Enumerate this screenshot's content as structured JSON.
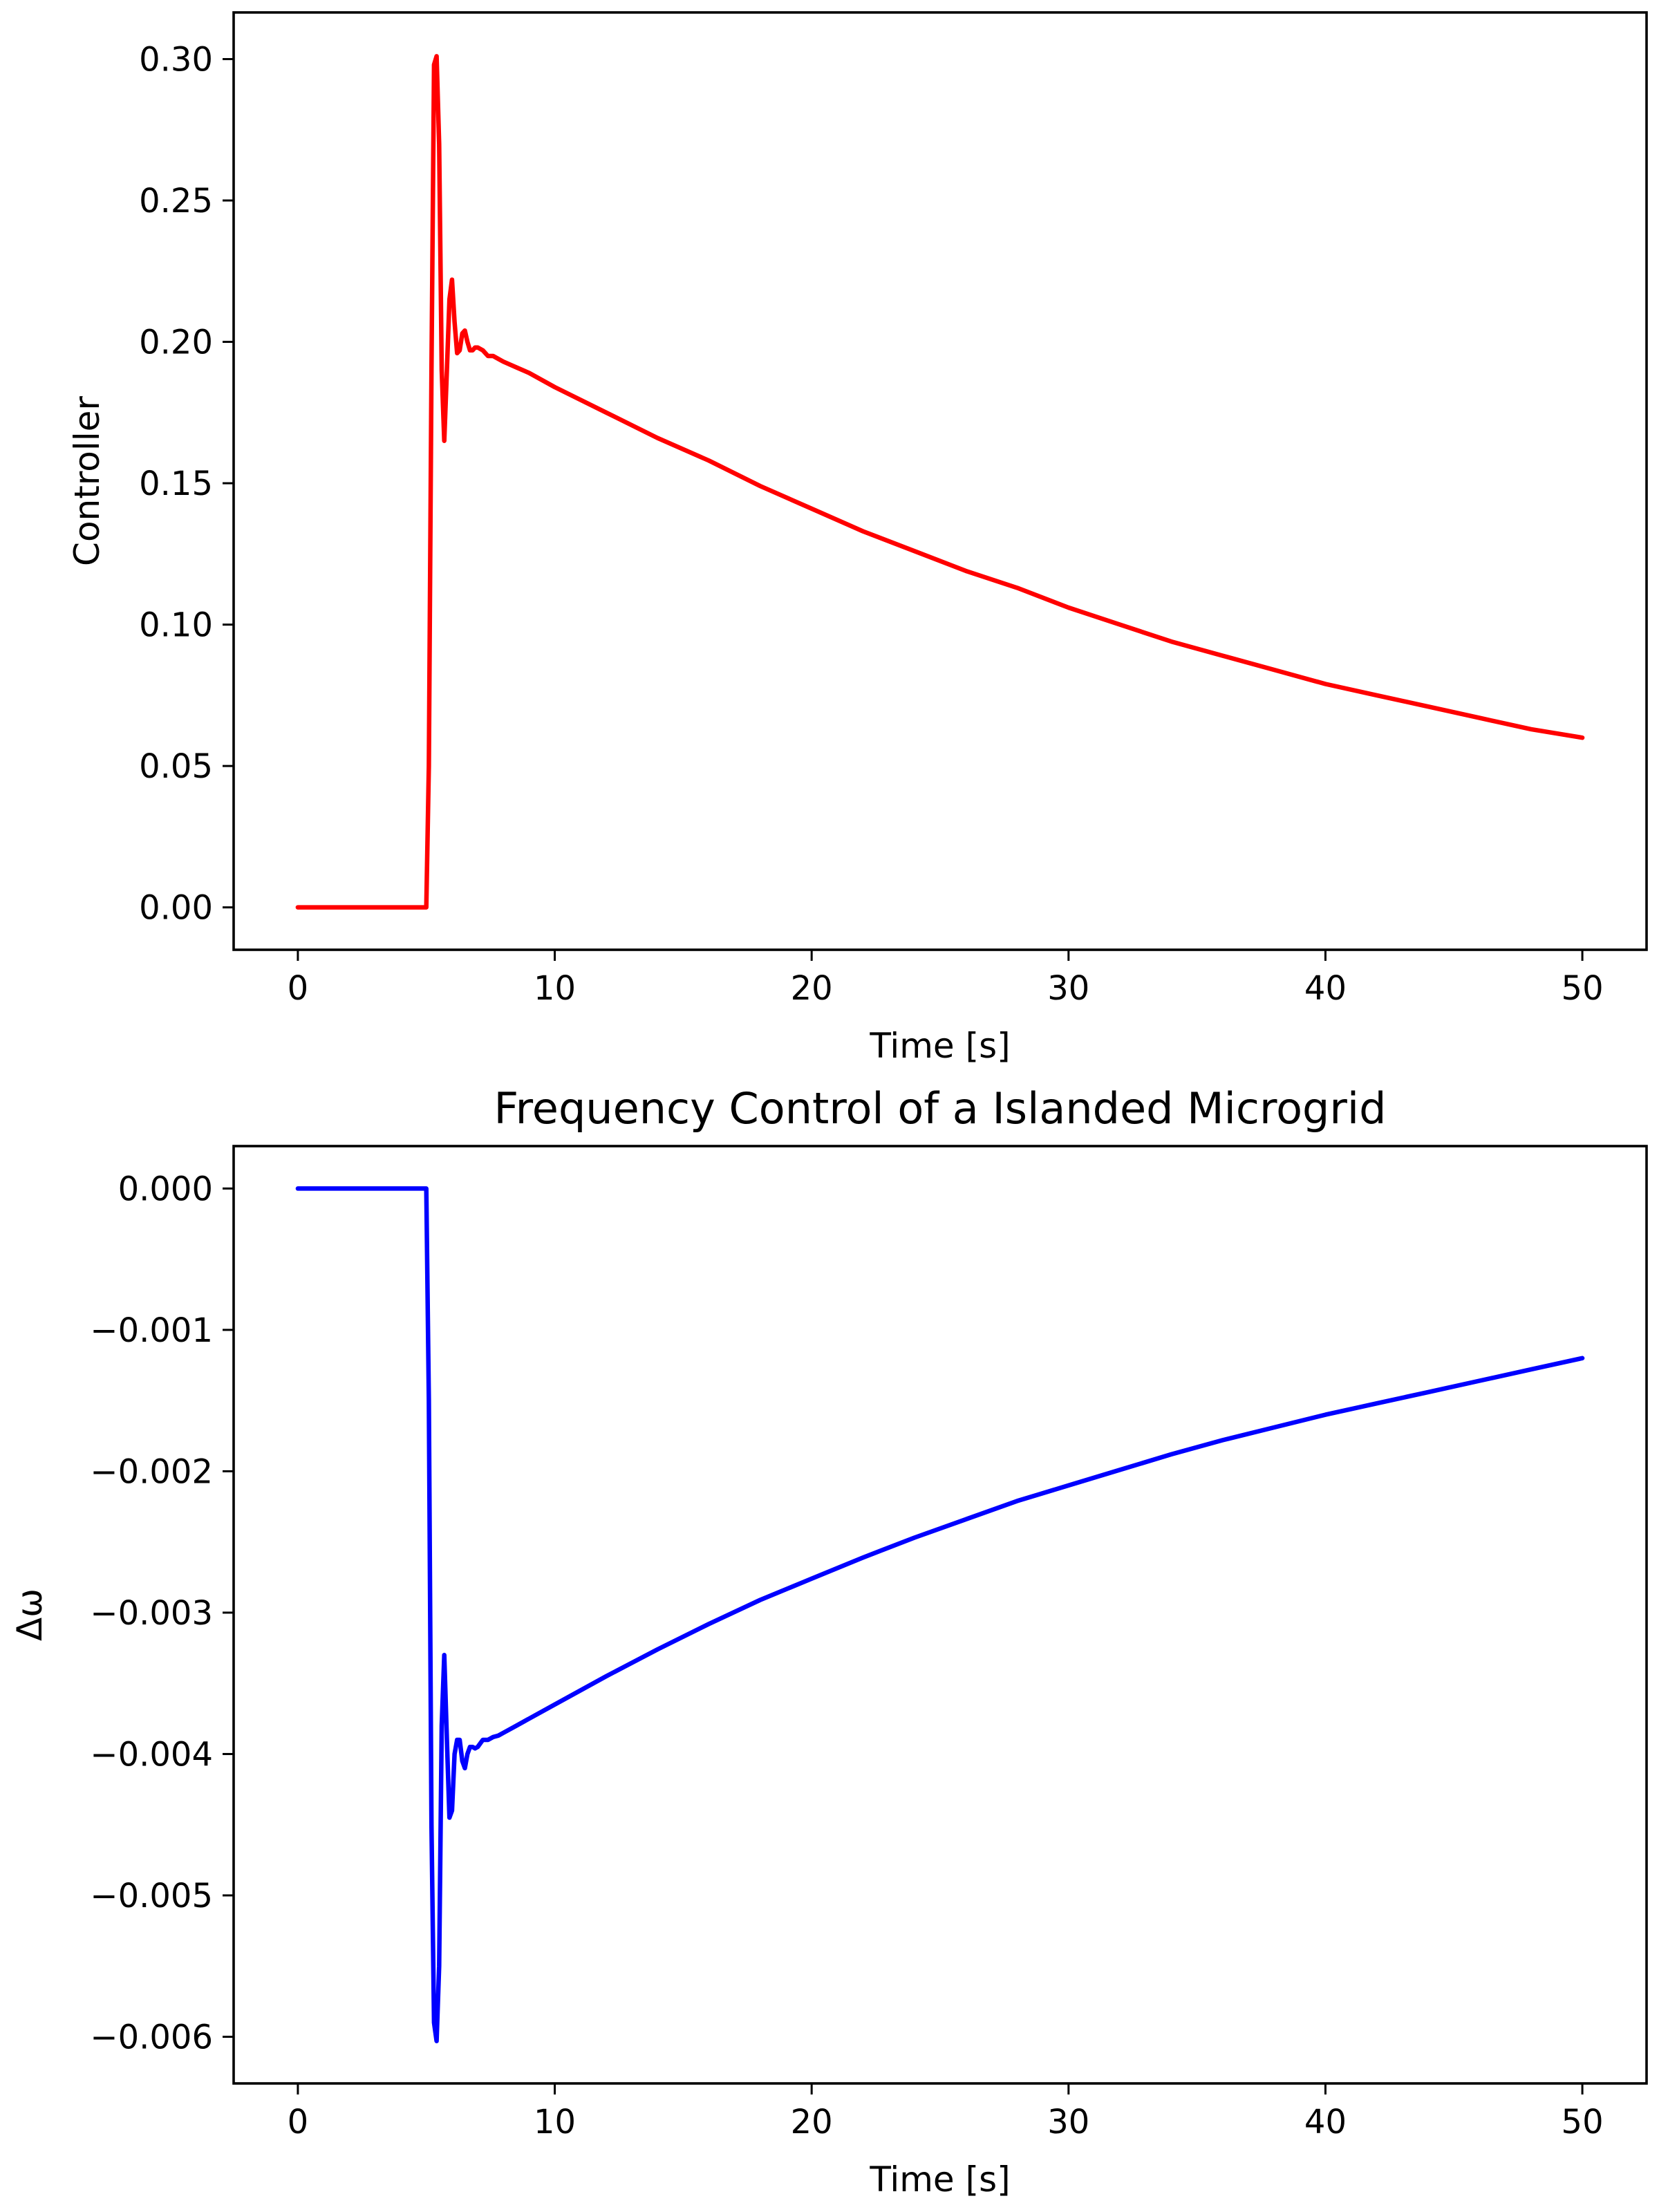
{
  "chart_data": [
    {
      "type": "line",
      "title": "",
      "xlabel": "Time [s]",
      "ylabel": "Controller",
      "xlim": [
        -2.5,
        52.5
      ],
      "ylim": [
        -0.015,
        0.3165
      ],
      "xticks": [
        0,
        10,
        20,
        30,
        40,
        50
      ],
      "xtick_labels": [
        "0",
        "10",
        "20",
        "30",
        "40",
        "50"
      ],
      "yticks": [
        0.0,
        0.05,
        0.1,
        0.15,
        0.2,
        0.25,
        0.3
      ],
      "ytick_labels": [
        "0.00",
        "0.05",
        "0.10",
        "0.15",
        "0.20",
        "0.25",
        "0.30"
      ],
      "grid": false,
      "series": [
        {
          "color": "#ff0000",
          "x": [
            0,
            5,
            5.1,
            5.2,
            5.3,
            5.4,
            5.5,
            5.6,
            5.7,
            5.8,
            5.9,
            6.0,
            6.1,
            6.2,
            6.3,
            6.4,
            6.5,
            6.6,
            6.7,
            6.8,
            6.9,
            7.0,
            7.2,
            7.4,
            7.6,
            7.8,
            8.0,
            8.5,
            9,
            10,
            12,
            14,
            16,
            18,
            20,
            22,
            24,
            26,
            28,
            30,
            32,
            34,
            36,
            38,
            40,
            42,
            44,
            46,
            48,
            50
          ],
          "values": [
            0,
            0,
            0.05,
            0.19,
            0.298,
            0.301,
            0.27,
            0.19,
            0.165,
            0.19,
            0.215,
            0.222,
            0.207,
            0.196,
            0.197,
            0.203,
            0.204,
            0.2,
            0.197,
            0.197,
            0.198,
            0.198,
            0.197,
            0.195,
            0.195,
            0.194,
            0.193,
            0.191,
            0.189,
            0.184,
            0.175,
            0.166,
            0.158,
            0.149,
            0.141,
            0.133,
            0.126,
            0.119,
            0.113,
            0.106,
            0.1,
            0.094,
            0.089,
            0.084,
            0.079,
            0.075,
            0.071,
            0.067,
            0.063,
            0.06
          ]
        }
      ]
    },
    {
      "type": "line",
      "title": "Frequency Control of a Islanded Microgrid",
      "xlabel": "Time [s]",
      "ylabel": "Δω",
      "xlim": [
        -2.5,
        52.5
      ],
      "ylim": [
        -0.00633,
        0.0003
      ],
      "xticks": [
        0,
        10,
        20,
        30,
        40,
        50
      ],
      "xtick_labels": [
        "0",
        "10",
        "20",
        "30",
        "40",
        "50"
      ],
      "yticks": [
        0.0,
        -0.001,
        -0.002,
        -0.003,
        -0.004,
        -0.005,
        -0.006
      ],
      "ytick_labels": [
        "0.000",
        "−0.001",
        "−0.002",
        "−0.003",
        "−0.004",
        "−0.005",
        "−0.006"
      ],
      "grid": false,
      "series": [
        {
          "color": "#0000ff",
          "x": [
            0,
            5,
            5.1,
            5.2,
            5.3,
            5.4,
            5.5,
            5.6,
            5.7,
            5.8,
            5.9,
            6.0,
            6.1,
            6.2,
            6.3,
            6.4,
            6.5,
            6.6,
            6.7,
            6.8,
            6.9,
            7.0,
            7.2,
            7.4,
            7.6,
            7.8,
            8.0,
            8.5,
            9,
            10,
            12,
            14,
            16,
            18,
            20,
            22,
            24,
            26,
            28,
            30,
            32,
            34,
            36,
            38,
            40,
            42,
            44,
            46,
            48,
            50
          ],
          "values": [
            0,
            0,
            -0.0015,
            -0.0045,
            -0.0059,
            -0.00603,
            -0.0055,
            -0.0038,
            -0.0033,
            -0.0039,
            -0.00445,
            -0.0044,
            -0.004,
            -0.0039,
            -0.0039,
            -0.00405,
            -0.0041,
            -0.004,
            -0.00395,
            -0.00395,
            -0.00396,
            -0.00395,
            -0.0039,
            -0.0039,
            -0.00388,
            -0.00387,
            -0.00385,
            -0.0038,
            -0.00375,
            -0.00365,
            -0.00345,
            -0.00326,
            -0.00308,
            -0.00291,
            -0.00276,
            -0.00261,
            -0.00247,
            -0.00234,
            -0.00221,
            -0.0021,
            -0.00199,
            -0.00188,
            -0.00178,
            -0.00169,
            -0.0016,
            -0.00152,
            -0.00144,
            -0.00136,
            -0.00128,
            -0.0012
          ]
        }
      ]
    }
  ]
}
